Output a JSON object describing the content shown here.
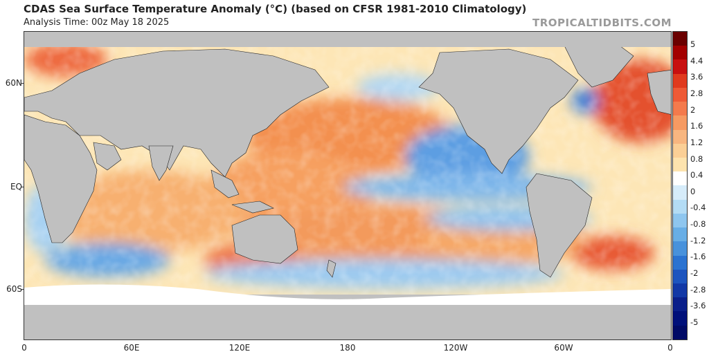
{
  "header": {
    "title": "CDAS Sea Surface Temperature Anomaly (°C) (based on CFSR 1981-2010 Climatology)",
    "analysis_time": "Analysis Time: 00z May 18 2025",
    "brand": "TROPICALTIDBITS.COM"
  },
  "map": {
    "lat_labels": [
      "60N",
      "EQ",
      "60S"
    ],
    "lon_labels": [
      "0",
      "60E",
      "120E",
      "180",
      "120W",
      "60W",
      "0"
    ],
    "land_color": "#c0c0c0",
    "ice_color": "#ffffff",
    "features": [
      "warm-north-atlantic",
      "cool-eastern-tropical-pacific",
      "warm-west-pacific",
      "warm-southern-hemisphere-subtropics",
      "sea-ice-antarctica"
    ]
  },
  "colorbar": {
    "labels": [
      "5",
      "4.4",
      "3.6",
      "2.8",
      "2",
      "1.6",
      "1.2",
      "0.8",
      "0.4",
      "0",
      "-0.4",
      "-0.8",
      "-1.2",
      "-1.6",
      "-2",
      "-2.8",
      "-3.6",
      "-5"
    ],
    "colors": [
      "#6b0000",
      "#a30000",
      "#c81010",
      "#e03a1e",
      "#ee5a36",
      "#f47a4c",
      "#f69a62",
      "#f8b680",
      "#fbcf96",
      "#fde3ae",
      "#ffffff",
      "#d6ecfa",
      "#b3dcf5",
      "#8ec6ef",
      "#68aee6",
      "#4892dc",
      "#2b73d1",
      "#1d55bf",
      "#1238a6",
      "#0a1f8a",
      "#00107a",
      "#000a66"
    ]
  }
}
